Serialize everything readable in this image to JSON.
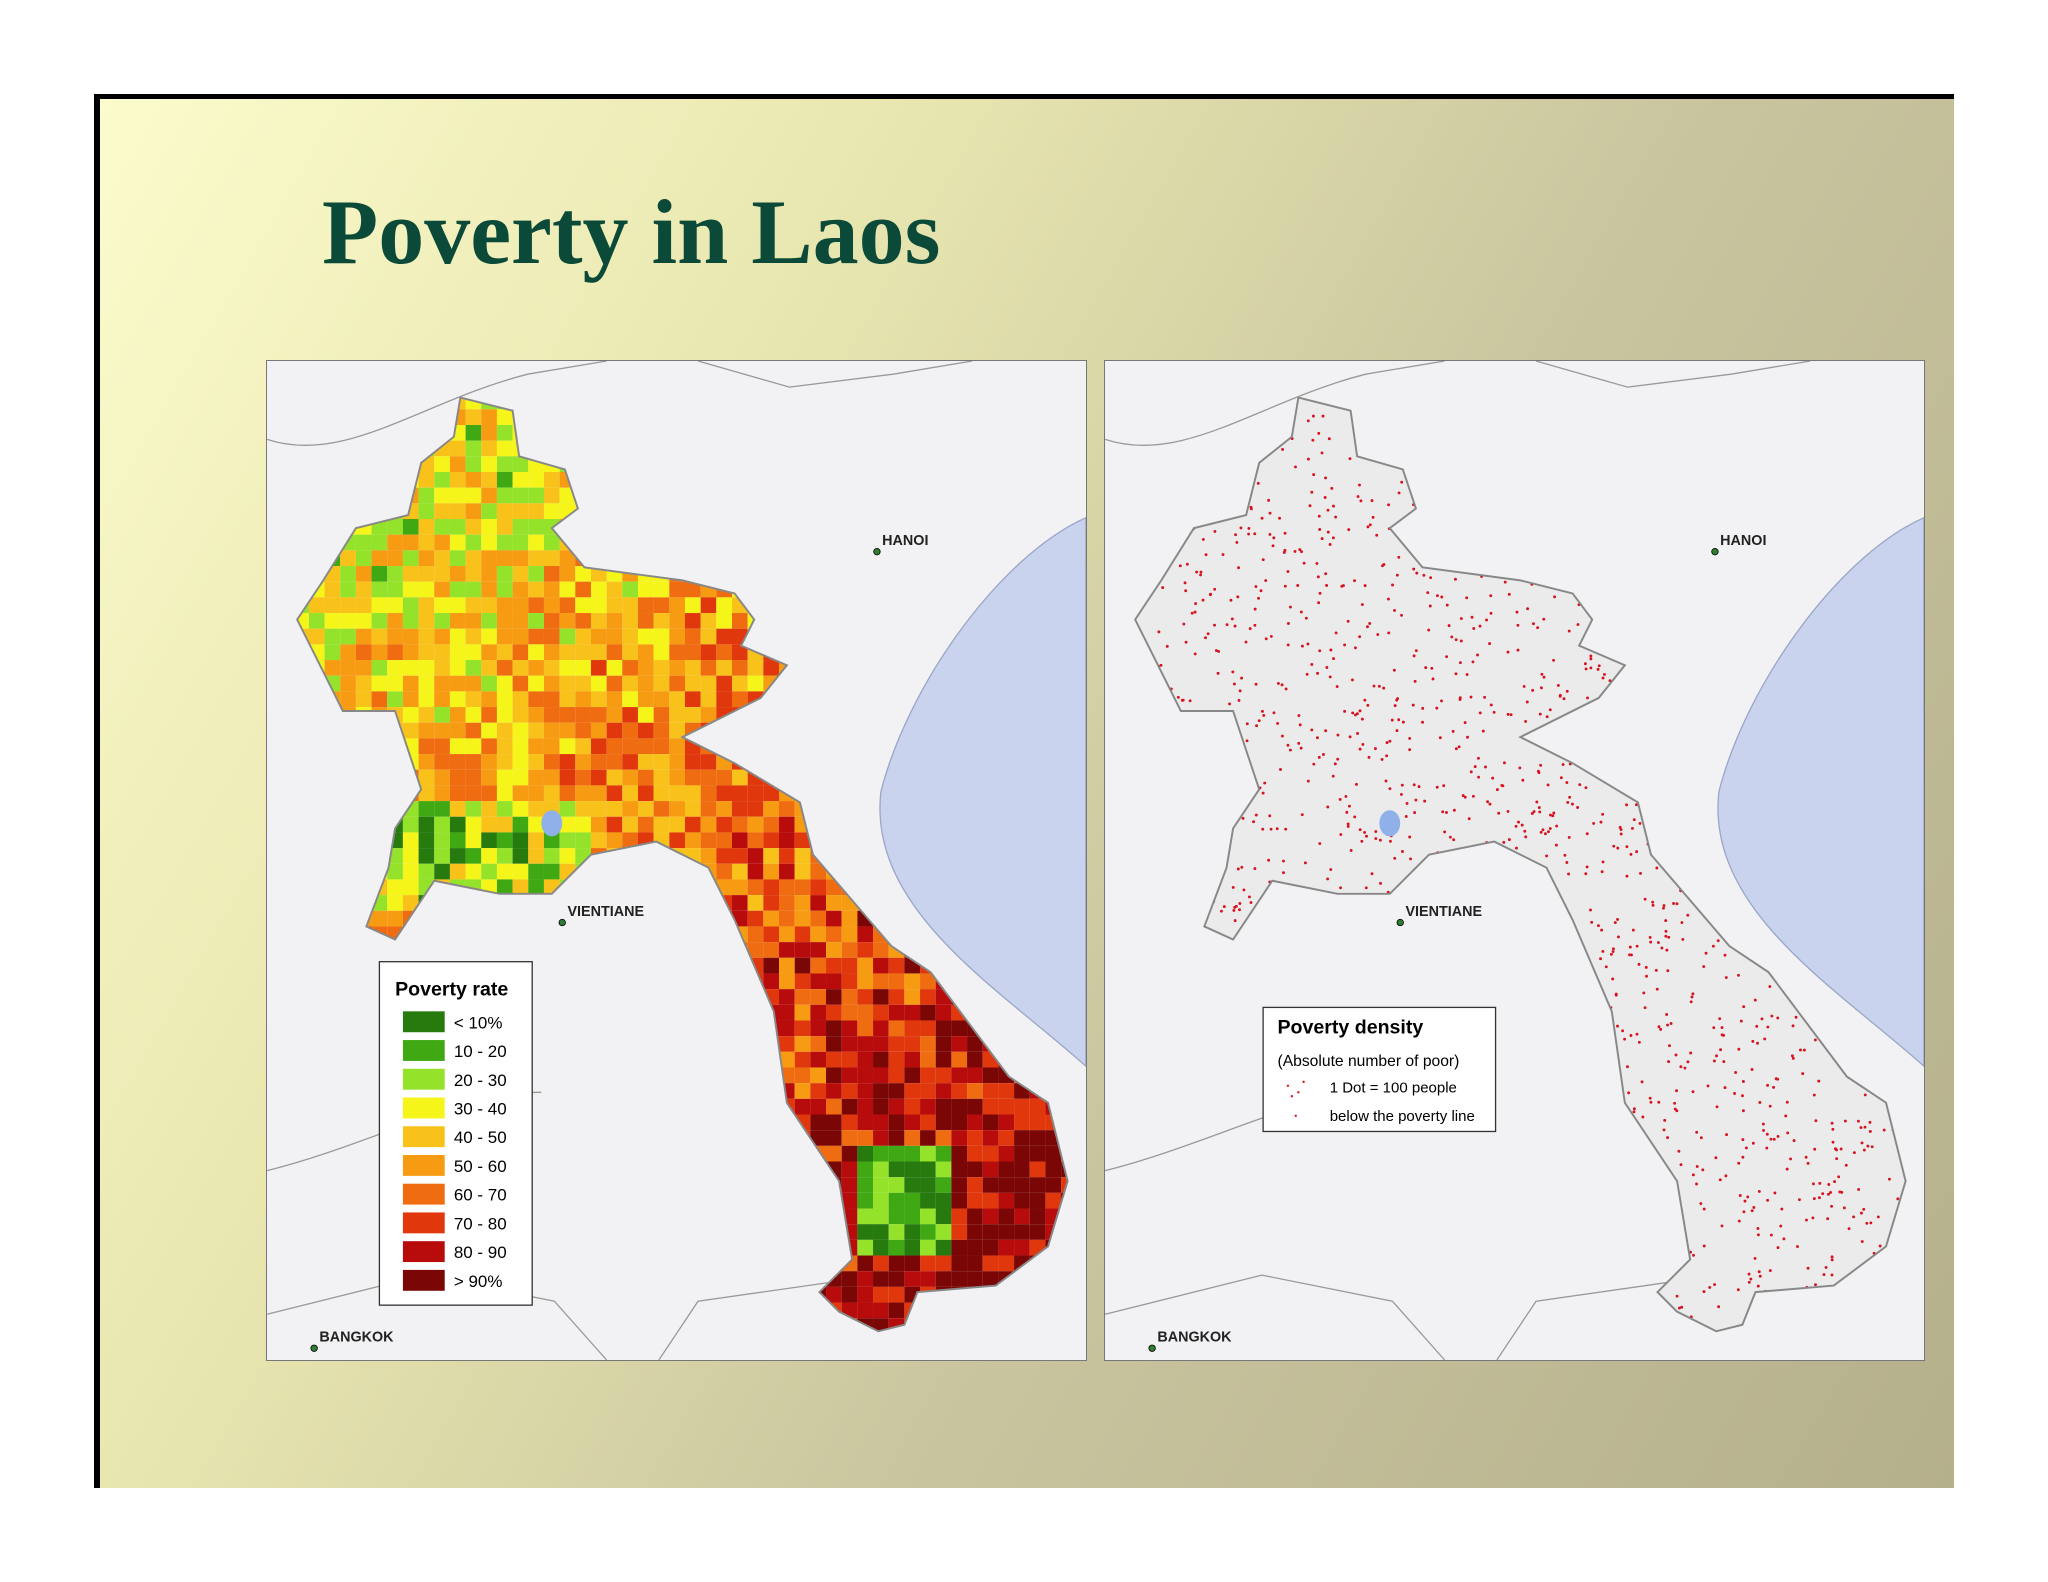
{
  "title": "Poverty in Laos",
  "maps": [
    {
      "cities": [
        {
          "label": "HANOI"
        },
        {
          "label": "VIENTIANE"
        },
        {
          "label": "BANGKOK"
        }
      ],
      "legend": {
        "title": "Poverty rate",
        "items": [
          {
            "label": "< 10%",
            "color": "#267a0e"
          },
          {
            "label": "10 - 20",
            "color": "#3fa813"
          },
          {
            "label": "20 - 30",
            "color": "#95e22a"
          },
          {
            "label": "30 - 40",
            "color": "#f5f51a"
          },
          {
            "label": "40 - 50",
            "color": "#f8c21a"
          },
          {
            "label": "50 - 60",
            "color": "#f79c12"
          },
          {
            "label": "60 - 70",
            "color": "#ef6c10"
          },
          {
            "label": "70 - 80",
            "color": "#e0380c"
          },
          {
            "label": "80 - 90",
            "color": "#b80c0c"
          },
          {
            "label": "> 90%",
            "color": "#7a0606"
          }
        ]
      }
    },
    {
      "cities": [
        {
          "label": "HANOI"
        },
        {
          "label": "VIENTIANE"
        },
        {
          "label": "BANGKOK"
        }
      ],
      "legend": {
        "title": "Poverty density",
        "subtitle": "(Absolute number of poor)",
        "lines": [
          "1 Dot = 100 people",
          "below the poverty line"
        ],
        "dot_color": "#d8121e"
      }
    }
  ]
}
